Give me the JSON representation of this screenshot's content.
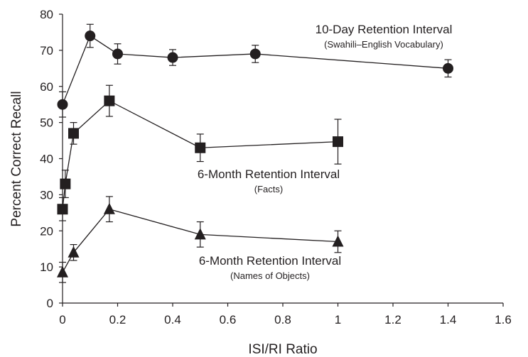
{
  "chart_data": {
    "type": "line",
    "xlabel": "ISI/RI Ratio",
    "ylabel": "Percent Correct Recall",
    "xlim": [
      0,
      1.6
    ],
    "ylim": [
      0,
      80
    ],
    "x_ticks": [
      "0",
      "0.2",
      "0.4",
      "0.6",
      "0.8",
      "1",
      "1.2",
      "1.4",
      "1.6"
    ],
    "x_tick_values": [
      0,
      0.2,
      0.4,
      0.6,
      0.8,
      1.0,
      1.2,
      1.4,
      1.6
    ],
    "y_ticks": [
      "0",
      "10",
      "20",
      "30",
      "40",
      "50",
      "60",
      "70",
      "80"
    ],
    "y_tick_values": [
      0,
      10,
      20,
      30,
      40,
      50,
      60,
      70,
      80
    ],
    "grid": false,
    "legend": "none",
    "series": [
      {
        "marker": "circle",
        "color": "#231f20",
        "x": [
          0,
          0.1,
          0.2,
          0.4,
          0.7,
          1.4
        ],
        "values": [
          55,
          74,
          69,
          68,
          69,
          65
        ],
        "error": [
          3.5,
          3.2,
          2.8,
          2.2,
          2.4,
          2.4
        ]
      },
      {
        "marker": "square",
        "color": "#231f20",
        "x": [
          0,
          0.01,
          0.04,
          0.17,
          0.5,
          1.0
        ],
        "values": [
          26,
          33,
          47,
          56,
          43,
          44.7
        ],
        "error": [
          3.2,
          3.8,
          3.0,
          4.3,
          3.8,
          6.2
        ]
      },
      {
        "marker": "triangle",
        "color": "#231f20",
        "x": [
          0,
          0.04,
          0.17,
          0.5,
          1.0
        ],
        "values": [
          8.5,
          14,
          26,
          19,
          17
        ],
        "error": [
          2.8,
          2.2,
          3.5,
          3.5,
          3.0
        ]
      }
    ],
    "annotations": [
      {
        "title": "10-Day Retention Interval",
        "subtitle": "(Swahili–English Vocabulary)"
      },
      {
        "title": "6-Month Retention Interval",
        "subtitle": "(Facts)"
      },
      {
        "title": "6-Month Retention Interval",
        "subtitle": "(Names of Objects)"
      }
    ]
  }
}
